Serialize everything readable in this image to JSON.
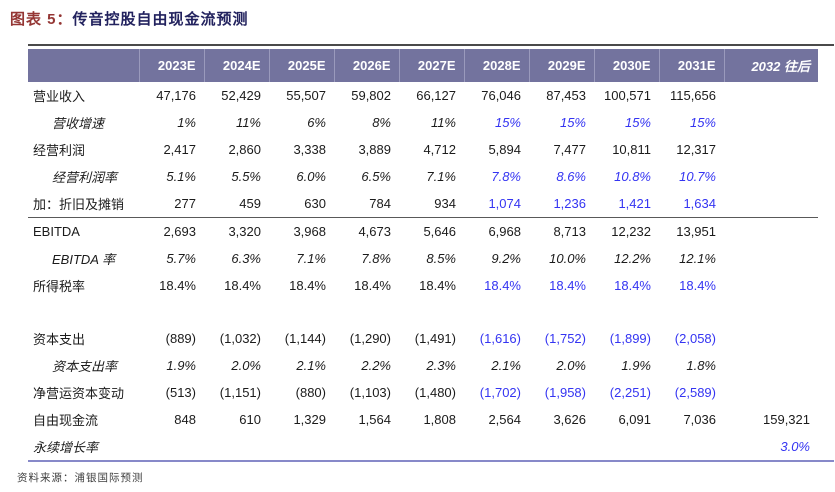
{
  "title": {
    "prefix": "图表 5：",
    "main": "传音控股自由现金流预测"
  },
  "table": {
    "columns": [
      "2023E",
      "2024E",
      "2025E",
      "2026E",
      "2027E",
      "2028E",
      "2029E",
      "2030E",
      "2031E",
      "2032 往后"
    ],
    "rows": [
      {
        "label": "营业收入",
        "indent": false,
        "italic": false,
        "separator_above": false,
        "spacer": false,
        "values": [
          "47,176",
          "52,429",
          "55,507",
          "59,802",
          "66,127",
          "76,046",
          "87,453",
          "100,571",
          "115,656",
          ""
        ],
        "blue_cols": []
      },
      {
        "label": "营收增速",
        "indent": true,
        "italic": true,
        "separator_above": false,
        "spacer": false,
        "values": [
          "1%",
          "11%",
          "6%",
          "8%",
          "11%",
          "15%",
          "15%",
          "15%",
          "15%",
          ""
        ],
        "blue_cols": [
          5,
          6,
          7,
          8
        ]
      },
      {
        "label": "经营利润",
        "indent": false,
        "italic": false,
        "separator_above": false,
        "spacer": false,
        "values": [
          "2,417",
          "2,860",
          "3,338",
          "3,889",
          "4,712",
          "5,894",
          "7,477",
          "10,811",
          "12,317",
          ""
        ],
        "blue_cols": []
      },
      {
        "label": "经营利润率",
        "indent": true,
        "italic": true,
        "separator_above": false,
        "spacer": false,
        "values": [
          "5.1%",
          "5.5%",
          "6.0%",
          "6.5%",
          "7.1%",
          "7.8%",
          "8.6%",
          "10.8%",
          "10.7%",
          ""
        ],
        "blue_cols": [
          5,
          6,
          7,
          8
        ]
      },
      {
        "label": "加：折旧及摊销",
        "indent": false,
        "italic": false,
        "separator_above": false,
        "spacer": false,
        "values": [
          "277",
          "459",
          "630",
          "784",
          "934",
          "1,074",
          "1,236",
          "1,421",
          "1,634",
          ""
        ],
        "blue_cols": [
          5,
          6,
          7,
          8
        ]
      },
      {
        "label": "EBITDA",
        "indent": false,
        "italic": false,
        "separator_above": true,
        "spacer": false,
        "values": [
          "2,693",
          "3,320",
          "3,968",
          "4,673",
          "5,646",
          "6,968",
          "8,713",
          "12,232",
          "13,951",
          ""
        ],
        "blue_cols": []
      },
      {
        "label": "EBITDA 率",
        "indent": true,
        "italic": true,
        "separator_above": false,
        "spacer": false,
        "values": [
          "5.7%",
          "6.3%",
          "7.1%",
          "7.8%",
          "8.5%",
          "9.2%",
          "10.0%",
          "12.2%",
          "12.1%",
          ""
        ],
        "blue_cols": []
      },
      {
        "label": "所得税率",
        "indent": false,
        "italic": false,
        "separator_above": false,
        "spacer": false,
        "values": [
          "18.4%",
          "18.4%",
          "18.4%",
          "18.4%",
          "18.4%",
          "18.4%",
          "18.4%",
          "18.4%",
          "18.4%",
          ""
        ],
        "blue_cols": [
          5,
          6,
          7,
          8
        ]
      },
      {
        "label": "",
        "indent": false,
        "italic": false,
        "separator_above": false,
        "spacer": true,
        "values": [
          "",
          "",
          "",
          "",
          "",
          "",
          "",
          "",
          "",
          ""
        ],
        "blue_cols": []
      },
      {
        "label": "资本支出",
        "indent": false,
        "italic": false,
        "separator_above": false,
        "spacer": false,
        "values": [
          "(889)",
          "(1,032)",
          "(1,144)",
          "(1,290)",
          "(1,491)",
          "(1,616)",
          "(1,752)",
          "(1,899)",
          "(2,058)",
          ""
        ],
        "blue_cols": [
          5,
          6,
          7,
          8
        ]
      },
      {
        "label": "资本支出率",
        "indent": true,
        "italic": true,
        "separator_above": false,
        "spacer": false,
        "values": [
          "1.9%",
          "2.0%",
          "2.1%",
          "2.2%",
          "2.3%",
          "2.1%",
          "2.0%",
          "1.9%",
          "1.8%",
          ""
        ],
        "blue_cols": []
      },
      {
        "label": "净营运资本变动",
        "indent": false,
        "italic": false,
        "separator_above": false,
        "spacer": false,
        "values": [
          "(513)",
          "(1,151)",
          "(880)",
          "(1,103)",
          "(1,480)",
          "(1,702)",
          "(1,958)",
          "(2,251)",
          "(2,589)",
          ""
        ],
        "blue_cols": [
          5,
          6,
          7,
          8
        ]
      },
      {
        "label": "自由现金流",
        "indent": false,
        "italic": false,
        "separator_above": false,
        "spacer": false,
        "values": [
          "848",
          "610",
          "1,329",
          "1,564",
          "1,808",
          "2,564",
          "3,626",
          "6,091",
          "7,036",
          "159,321"
        ],
        "blue_cols": []
      },
      {
        "label": "永续增长率",
        "indent": false,
        "italic": true,
        "separator_above": false,
        "spacer": false,
        "values": [
          "",
          "",
          "",
          "",
          "",
          "",
          "",
          "",
          "",
          "3.0%"
        ],
        "blue_cols": [
          9
        ]
      }
    ],
    "colors": {
      "header_bg": "#73739E",
      "highlight_blue": "#3434f2",
      "title_red": "#943634",
      "title_navy": "#22225e",
      "bottom_rule": "#8789c9"
    }
  },
  "footer": {
    "source": "资料来源：浦银国际预测"
  }
}
